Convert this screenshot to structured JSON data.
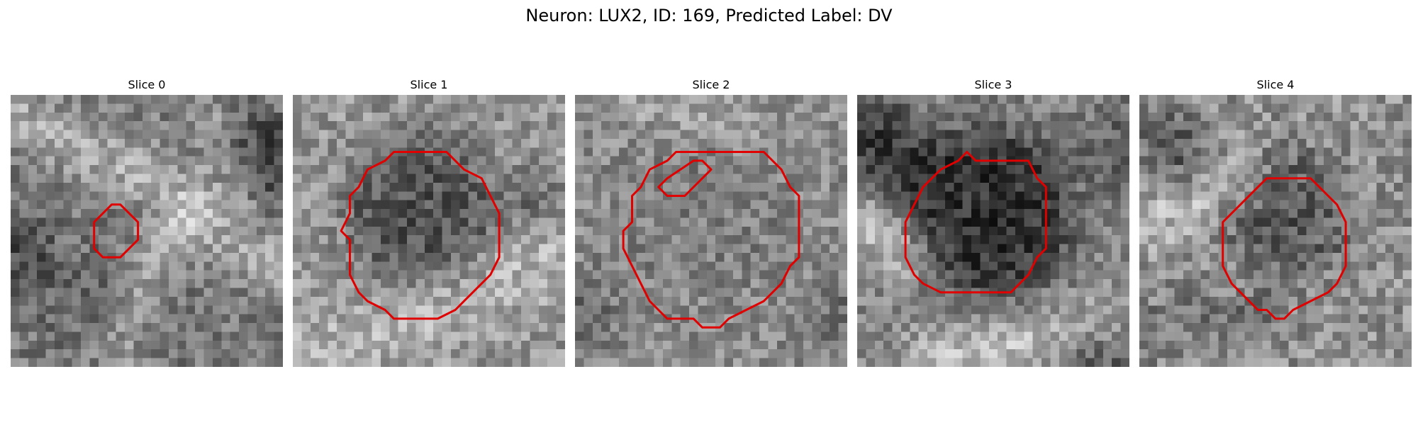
{
  "figure": {
    "title": "Neuron: LUX2, ID: 169, Predicted Label: DV"
  },
  "colors": {
    "contour": "#e00000"
  },
  "slices": [
    {
      "title": "Slice 0"
    },
    {
      "title": "Slice 1"
    },
    {
      "title": "Slice 2"
    },
    {
      "title": "Slice 3"
    },
    {
      "title": "Slice 4"
    }
  ]
}
